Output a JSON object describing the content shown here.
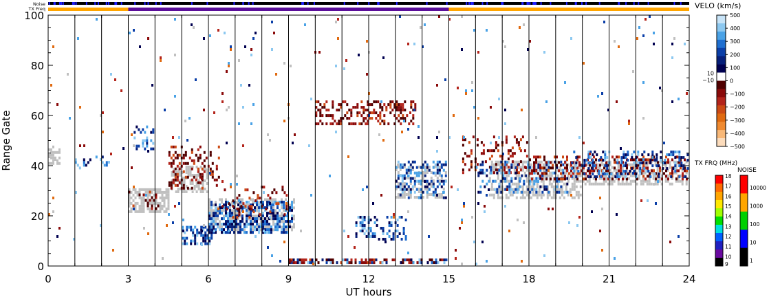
{
  "chart_data": {
    "type": "heatmap",
    "xlabel": "UT hours",
    "ylabel": "Range Gate",
    "xlim": [
      0,
      24
    ],
    "ylim": [
      0,
      100
    ],
    "xticks": [
      0,
      3,
      6,
      9,
      12,
      15,
      18,
      21,
      24
    ],
    "yticks": [
      0,
      20,
      40,
      60,
      80,
      100
    ],
    "vertical_scan_lines_hours": [
      1,
      2,
      3,
      4,
      5,
      6,
      7,
      8,
      9,
      10,
      11,
      12,
      13,
      14,
      15,
      16,
      17,
      18,
      19,
      20,
      21,
      22,
      23
    ],
    "top_strips": {
      "noise_label": "Noise",
      "txfreq_label": "TX Freq",
      "txfreq_segments": [
        {
          "start": 0,
          "end": 3,
          "color": "#ffa500"
        },
        {
          "start": 3,
          "end": 15,
          "color": "#5b0f9a"
        },
        {
          "start": 15,
          "end": 24,
          "color": "#ffa500"
        }
      ]
    },
    "velocity_colorbar": {
      "title": "VELO (km/s)",
      "ticks": [
        "500",
        "400",
        "300",
        "200",
        "100",
        "0",
        "−100",
        "−200",
        "−300",
        "−400",
        "−500"
      ],
      "zero_band_labels": [
        "10",
        "−10"
      ],
      "colors_top_to_bottom": [
        "#c8e4f8",
        "#8cc8f0",
        "#4aa2e6",
        "#1f6fd0",
        "#0b3fa8",
        "#061f7a",
        "#000050",
        "#ffffff",
        "#500000",
        "#8a0a0a",
        "#b3241b",
        "#cc4a14",
        "#e06a10",
        "#f08a30",
        "#f8b878",
        "#fcdcbc"
      ]
    },
    "txfreq_colorbar": {
      "title": "TX FRQ (MHz)",
      "ticks": [
        "18",
        "17",
        "16",
        "15",
        "14",
        "13",
        "12",
        "11",
        "10",
        "9"
      ],
      "colors_top_to_bottom": [
        "#ff0000",
        "#ff6a00",
        "#ffa500",
        "#ffe800",
        "#a0ff00",
        "#00e000",
        "#00e0e0",
        "#0060ff",
        "#2020c0",
        "#6a0aa0",
        "#000000"
      ]
    },
    "noise_colorbar": {
      "title": "NOISE",
      "ticks": [
        "10000",
        "1000",
        "100",
        "10",
        "1"
      ],
      "colors_top_to_bottom": [
        "#ff0000",
        "#ffa500",
        "#00d000",
        "#0000ff",
        "#000000"
      ]
    },
    "ground_scatter_color": "#c0c0c0",
    "scatter_regions": [
      {
        "kind": "ground",
        "x0": 0.0,
        "x1": 0.5,
        "y0": 40,
        "y1": 48,
        "density": 0.55
      },
      {
        "kind": "ground",
        "x0": 3.0,
        "x1": 4.6,
        "y0": 21,
        "y1": 31,
        "density": 0.7
      },
      {
        "kind": "ground",
        "x0": 4.6,
        "x1": 6.0,
        "y0": 28,
        "y1": 40,
        "density": 0.5
      },
      {
        "kind": "ground",
        "x0": 6.0,
        "x1": 9.3,
        "y0": 13,
        "y1": 27,
        "density": 0.55
      },
      {
        "kind": "ground",
        "x0": 13.0,
        "x1": 15.0,
        "y0": 26,
        "y1": 40,
        "density": 0.35
      },
      {
        "kind": "ground",
        "x0": 16.5,
        "x1": 20.0,
        "y0": 26,
        "y1": 42,
        "density": 0.55
      },
      {
        "kind": "ground",
        "x0": 20.0,
        "x1": 24.0,
        "y0": 32,
        "y1": 42,
        "density": 0.5
      },
      {
        "kind": "neg",
        "x0": 3.0,
        "x1": 4.2,
        "y0": 22,
        "y1": 30,
        "density": 0.18
      },
      {
        "kind": "neg",
        "x0": 4.5,
        "x1": 6.5,
        "y0": 30,
        "y1": 48,
        "density": 0.25
      },
      {
        "kind": "pos",
        "x0": 5.0,
        "x1": 6.2,
        "y0": 8,
        "y1": 16,
        "density": 0.4
      },
      {
        "kind": "pos",
        "x0": 6.0,
        "x1": 9.2,
        "y0": 12,
        "y1": 26,
        "density": 0.55
      },
      {
        "kind": "neg",
        "x0": 6.5,
        "x1": 9.0,
        "y0": 18,
        "y1": 32,
        "density": 0.18
      },
      {
        "kind": "neg",
        "x0": 10.0,
        "x1": 13.8,
        "y0": 56,
        "y1": 66,
        "density": 0.4
      },
      {
        "kind": "pos",
        "x0": 11.5,
        "x1": 13.5,
        "y0": 10,
        "y1": 20,
        "density": 0.3
      },
      {
        "kind": "pos",
        "x0": 13.0,
        "x1": 15.0,
        "y0": 26,
        "y1": 42,
        "density": 0.35
      },
      {
        "kind": "neg",
        "x0": 9.0,
        "x1": 15.0,
        "y0": 0,
        "y1": 3,
        "density": 0.45
      },
      {
        "kind": "pos",
        "x0": 9.0,
        "x1": 15.0,
        "y0": 0,
        "y1": 3,
        "density": 0.25
      },
      {
        "kind": "neg",
        "x0": 15.5,
        "x1": 18.0,
        "y0": 36,
        "y1": 52,
        "density": 0.22
      },
      {
        "kind": "pos",
        "x0": 16.0,
        "x1": 19.5,
        "y0": 28,
        "y1": 42,
        "density": 0.25
      },
      {
        "kind": "neg",
        "x0": 18.0,
        "x1": 24.0,
        "y0": 34,
        "y1": 44,
        "density": 0.3
      },
      {
        "kind": "pos",
        "x0": 19.5,
        "x1": 24.0,
        "y0": 34,
        "y1": 46,
        "density": 0.3
      },
      {
        "kind": "pos",
        "x0": 3.2,
        "x1": 4.0,
        "y0": 46,
        "y1": 56,
        "density": 0.3
      },
      {
        "kind": "pos",
        "x0": 1.0,
        "x1": 2.3,
        "y0": 38,
        "y1": 44,
        "density": 0.25
      },
      {
        "kind": "noise",
        "x0": 0.0,
        "x1": 24.0,
        "y0": 0,
        "y1": 100,
        "density": 0.012
      }
    ]
  }
}
